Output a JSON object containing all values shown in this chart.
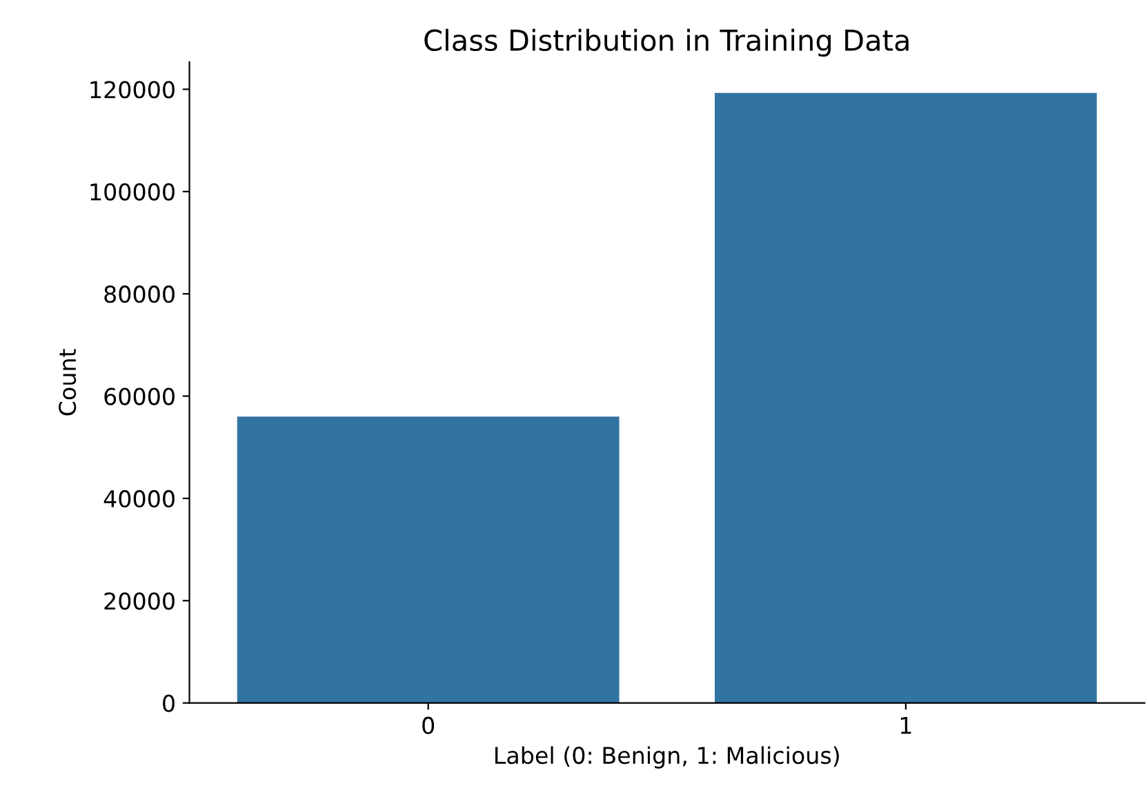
{
  "chart_data": {
    "type": "bar",
    "title": "Class Distribution in Training Data",
    "xlabel": "Label (0: Benign, 1: Malicious)",
    "ylabel": "Count",
    "categories": [
      "0",
      "1"
    ],
    "values": [
      56000,
      119300
    ],
    "color": "#3274a1",
    "ylim": [
      0,
      125300
    ],
    "yticks": [
      0,
      20000,
      40000,
      60000,
      80000,
      100000,
      120000
    ],
    "grid": false,
    "legend": false
  }
}
